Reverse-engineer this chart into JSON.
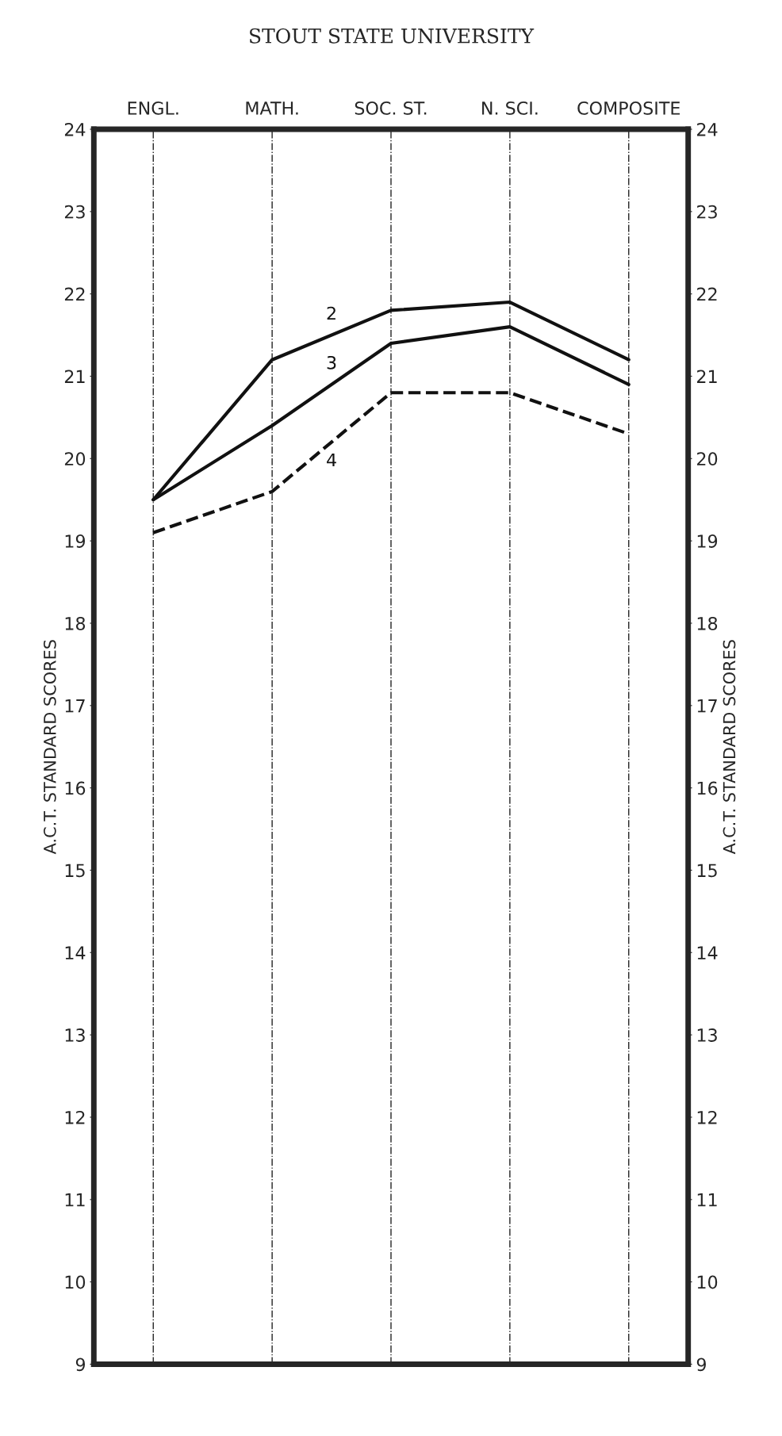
{
  "chart_data": {
    "type": "line",
    "categories": [
      "ENGL.",
      "MATH.",
      "SOC. ST.",
      "N. SCI.",
      "COMPOSITE"
    ],
    "series": [
      {
        "name": "2",
        "color": "#111111",
        "line_style": "solid",
        "values": [
          19.5,
          21.2,
          21.8,
          21.9,
          21.2
        ]
      },
      {
        "name": "3",
        "color": "#111111",
        "line_style": "solid",
        "values": [
          19.5,
          20.4,
          21.4,
          21.6,
          20.9
        ]
      },
      {
        "name": "4",
        "color": "#111111",
        "line_style": "dashed",
        "values": [
          19.1,
          19.6,
          20.8,
          20.8,
          20.3
        ]
      }
    ],
    "ylim": [
      9,
      24
    ],
    "yticks": [
      9,
      10,
      11,
      12,
      13,
      14,
      15,
      16,
      17,
      18,
      19,
      20,
      21,
      22,
      23,
      24
    ],
    "y2lim": [
      9,
      24
    ],
    "y2ticks": [
      9,
      10,
      11,
      12,
      13,
      14,
      15,
      16,
      17,
      18,
      19,
      20,
      21,
      22,
      23,
      24
    ],
    "ylabel": "A.C.T. STANDARD SCORES",
    "y2label": "A.C.T. STANDARD SCORES",
    "annotations": [
      "STOUT STATE UNIVERSITY"
    ],
    "grid": "x",
    "marker": "none",
    "legend": false
  }
}
